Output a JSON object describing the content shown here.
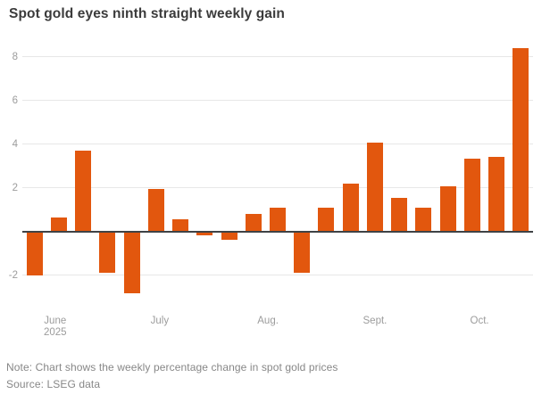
{
  "title": "Spot gold eyes ninth straight weekly gain",
  "note": "Note: Chart shows the weekly percentage change in spot gold prices",
  "source": "Source: LSEG data",
  "colors": {
    "bar": "#e2570e",
    "zero_line": "#3f4245",
    "gridline": "#e7e7e7",
    "axis_text": "#9c9c9c",
    "note_text": "#878787",
    "title_text": "#3b3b3b",
    "background": "#ffffff"
  },
  "chart_data": {
    "type": "bar",
    "title": "Spot gold eyes ninth straight weekly gain",
    "xlabel": "",
    "ylabel": "",
    "unit": "%",
    "values": [
      -2.0,
      0.65,
      3.7,
      -1.9,
      -2.85,
      1.95,
      0.55,
      -0.2,
      -0.4,
      0.8,
      1.1,
      -1.9,
      1.1,
      2.2,
      4.05,
      1.55,
      1.1,
      2.05,
      3.35,
      3.4,
      8.4
    ],
    "y_ticks": [
      8,
      6,
      4,
      2,
      -2
    ],
    "ylim": [
      -3.16,
      8.76
    ],
    "grid": true,
    "legend": false,
    "month_ticks": [
      {
        "label": "June",
        "sublabel": "2025",
        "week_index": 0.85
      },
      {
        "label": "July",
        "week_index": 5.15
      },
      {
        "label": "Aug.",
        "week_index": 9.6
      },
      {
        "label": "Sept.",
        "week_index": 14.0
      },
      {
        "label": "Oct.",
        "week_index": 18.3
      }
    ]
  }
}
